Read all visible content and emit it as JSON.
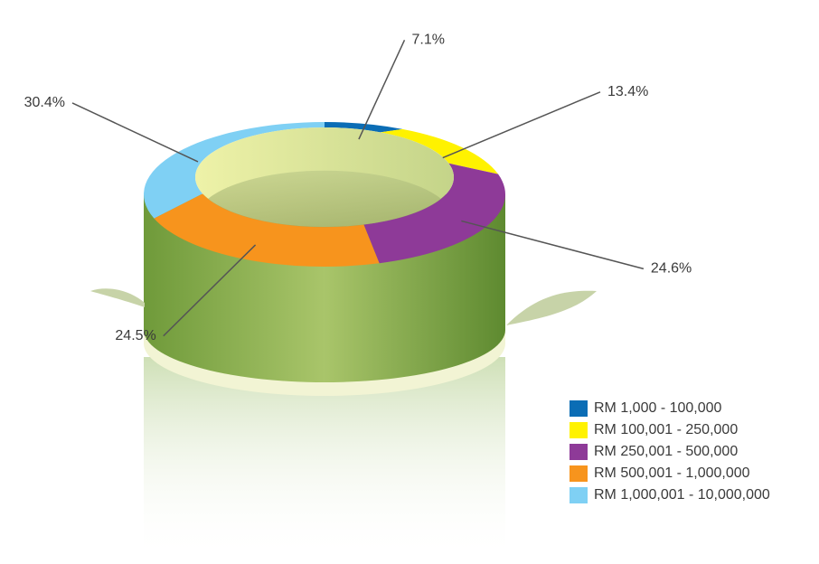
{
  "chart_data": {
    "type": "donut",
    "categories": [
      "RM 1,000 - 100,000",
      "RM 100,001 - 250,000",
      "RM 250,001 - 500,000",
      "RM 500,001 - 1,000,000",
      "RM 1,000,001 - 10,000,000"
    ],
    "values": [
      7.1,
      13.4,
      24.6,
      24.5,
      30.4
    ],
    "value_labels": [
      "7.1%",
      "13.4%",
      "24.6%",
      "24.5%",
      "30.4%"
    ],
    "colors": [
      "#0b6db5",
      "#fff200",
      "#8e3a98",
      "#f7941d",
      "#7fd0f4"
    ],
    "legend": "bottom-right"
  }
}
